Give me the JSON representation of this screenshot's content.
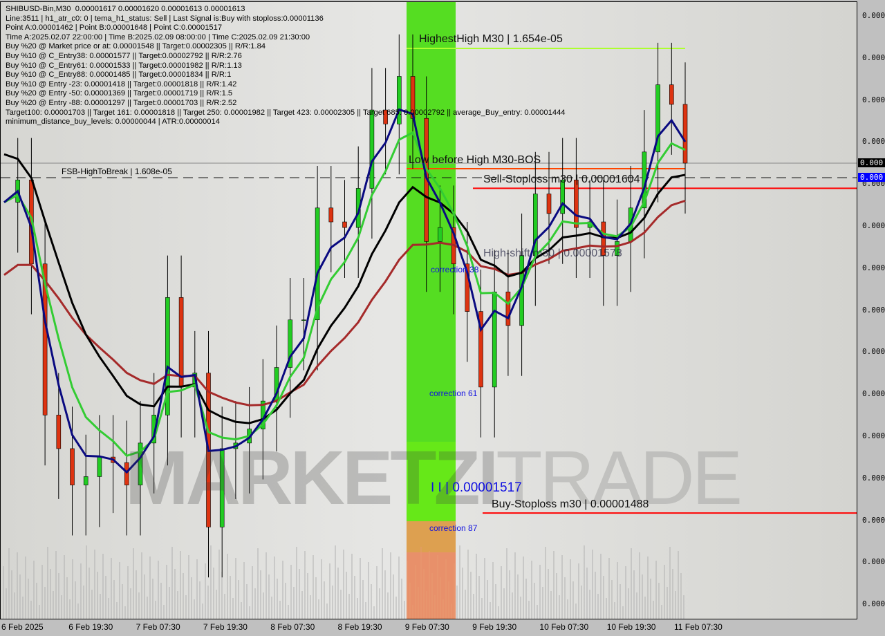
{
  "header": {
    "symbol_line": "SHIBUSD-Bin,M30  0.00001617 0.00001620 0.00001613 0.00001613",
    "lines": [
      "Line:3511 | h1_atr_c0: 0 | tema_h1_status: Sell | Last Signal is:Buy with stoploss:0.00001136",
      "Point A:0.00001462 | Point B:0.00001648 | Point C:0.00001517",
      "Time A:2025.02.07 22:00:00 | Time B:2025.02.09 08:00:00 | Time C:2025.02.09 21:30:00",
      "Buy %20 @ Market price or at: 0.00001548 || Target:0.00002305 || R/R:1.84",
      "Buy %10 @ C_Entry38: 0.00001577 || Target:0.00002792 || R/R:2.76",
      "Buy %10 @ C_Entry61: 0.00001533 || Target:0.00001982 || R/R:1.13",
      "Buy %10 @ C_Entry88: 0.00001485 || Target:0.00001834 || R/R:1",
      "Buy %10 @ Entry -23: 0.00001418 || Target:0.00001818 || R/R:1.42",
      "Buy %20 @ Entry -50: 0.00001369 || Target:0.00001719 || R/R:1.5",
      "Buy %20 @ Entry -88: 0.00001297 || Target:0.00001703 || R/R:2.52",
      "Target100: 0.00001703 || Target 161: 0.00001818 || Target 250: 0.00001982 || Target 423: 0.00002305 || Target 685: 0.00002792 || average_Buy_entry: 0.00001444",
      "minimum_distance_buy_levels: 0.00000044 | ATR:0.00000014"
    ]
  },
  "annotations": {
    "highest_high": "HighestHigh   M30 | 1.654e-05",
    "low_before_high": "Low before High   M30-BOS",
    "fsb": "FSB-HighToBreak | 1.608e-05",
    "sell_stoploss": "Sell-Stoploss m30 | 0.00001604",
    "high_shift": "High-shift m30 | 0.00001578",
    "point_c": "I I | 0.00001517",
    "buy_stoploss": "Buy-Stoploss m30 | 0.00001488",
    "correction_38": "correction 38",
    "correction_61": "correction 61",
    "correction_87": "correction 87"
  },
  "watermark": {
    "part1": "MARKETZI",
    "part2": "TRADE"
  },
  "price_tags": {
    "current": "0.000",
    "dashed": "0.000"
  },
  "colors": {
    "ema_fast": "#0a0a80",
    "ema_mid": "#33cc33",
    "ema_slow": "#000000",
    "ema_long": "#a52a2a",
    "candle": "#000000",
    "stoploss": "#ff0000",
    "highest_high": "#adff2f",
    "bos": "#ff4500",
    "zone_green": "#55dd22",
    "zone_orange": "#dda050",
    "zone_salmon": "#e8906a"
  },
  "chart_data": {
    "type": "line",
    "title": "SHIBUSD-Bin,M30",
    "y_tick_labels": [
      "0.000",
      "0.000",
      "0.000",
      "0.000",
      "0.000",
      "0.000",
      "0.000",
      "0.000",
      "0.000",
      "0.000",
      "0.000",
      "0.000",
      "0.000",
      "0.000",
      "0.000"
    ],
    "x_tick_labels": [
      "6 Feb 2025",
      "6 Feb 19:30",
      "7 Feb 07:30",
      "7 Feb 19:30",
      "8 Feb 07:30",
      "8 Feb 19:30",
      "9 Feb 07:30",
      "9 Feb 19:30",
      "10 Feb 07:30",
      "10 Feb 19:30",
      "11 Feb 07:30"
    ],
    "ylim": [
      1.45e-05,
      1.67e-05
    ],
    "close": [
      1.599e-05,
      1.607e-05,
      1.577e-05,
      1.523e-05,
      1.511e-05,
      1.498e-05,
      1.501e-05,
      1.508e-05,
      1.506e-05,
      1.498e-05,
      1.513e-05,
      1.523e-05,
      1.565e-05,
      1.533e-05,
      1.538e-05,
      1.483e-05,
      1.511e-05,
      1.513e-05,
      1.518e-05,
      1.528e-05,
      1.54e-05,
      1.557e-05,
      1.557e-05,
      1.597e-05,
      1.592e-05,
      1.59e-05,
      1.604e-05,
      1.632e-05,
      1.627e-05,
      1.644e-05,
      1.629e-05,
      1.585e-05,
      1.59e-05,
      1.577e-05,
      1.56e-05,
      1.533e-05,
      1.567e-05,
      1.555e-05,
      1.58e-05,
      1.602e-05,
      1.595e-05,
      1.607e-05,
      1.59e-05,
      1.592e-05,
      1.58e-05,
      1.585e-05,
      1.597e-05,
      1.617e-05,
      1.641e-05,
      1.634e-05,
      1.613e-05
    ],
    "levels": {
      "highest_high": 1.654e-05,
      "bos": 1.61e-05,
      "fsb": 1.608e-05,
      "sell_stoploss": 1.604e-05,
      "buy_stoploss": 1.488e-05,
      "current": 1.613e-05
    },
    "grid": false
  }
}
